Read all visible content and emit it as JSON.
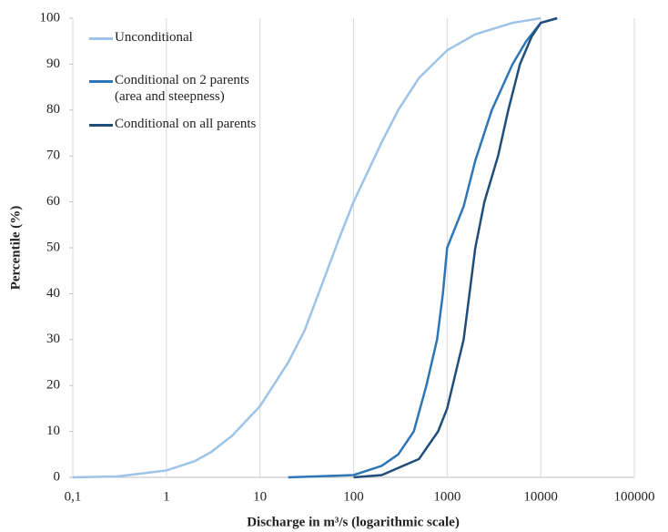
{
  "chart_data": {
    "type": "line",
    "x_label": "Discharge in m³/s (logarithmic scale)",
    "y_label": "Percentile (%)",
    "x_log_scale": true,
    "xlim": [
      0.1,
      100000
    ],
    "xticks": [
      {
        "value": 0.1,
        "label": "0,1"
      },
      1,
      10,
      100,
      1000,
      10000,
      100000
    ],
    "ylim": [
      0,
      100
    ],
    "yticks": [
      0,
      10,
      20,
      30,
      40,
      50,
      60,
      70,
      80,
      90,
      100
    ],
    "grid": "x",
    "legend": "upper left",
    "series": [
      {
        "name": "Unconditional",
        "color": "#9dc3e6",
        "x": [
          0.1,
          0.3,
          1,
          2,
          3,
          5,
          10,
          20,
          30,
          50,
          70,
          100,
          200,
          300,
          500,
          1000,
          2000,
          5000,
          10000
        ],
        "values": [
          0,
          0.2,
          1.5,
          3.5,
          5.5,
          9,
          15.5,
          25,
          32,
          44,
          52,
          60,
          73,
          80,
          87,
          93,
          96.5,
          99,
          100
        ]
      },
      {
        "name": "Conditional on 2 parents\n(area and steepness)",
        "color": "#2e75b6",
        "x": [
          20,
          100,
          200,
          300,
          440,
          600,
          780,
          900,
          1000,
          1500,
          2000,
          3000,
          5000,
          7000,
          10000,
          15000
        ],
        "values": [
          0,
          0.5,
          2.5,
          5,
          10,
          20,
          30,
          40,
          50,
          59,
          69,
          80,
          90,
          95,
          99,
          100
        ]
      },
      {
        "name": "Conditional on all parents",
        "color": "#1f4e79",
        "x": [
          100,
          200,
          500,
          800,
          1000,
          1500,
          2000,
          2500,
          3500,
          4500,
          6000,
          8000,
          10000,
          15000
        ],
        "values": [
          0,
          0.5,
          4,
          10,
          15,
          30,
          50,
          60,
          70,
          80,
          90,
          96,
          99,
          100
        ]
      }
    ]
  }
}
